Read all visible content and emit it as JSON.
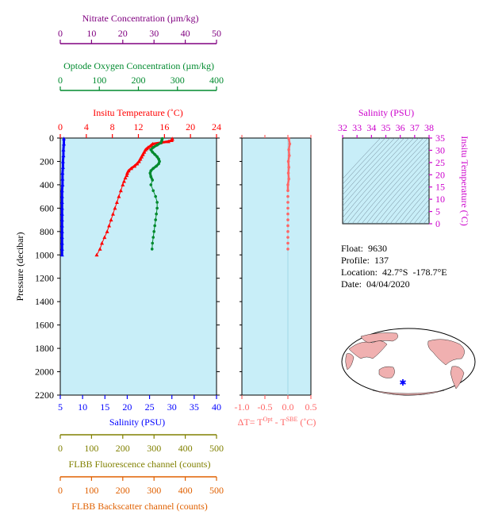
{
  "float_info": {
    "float_label": "Float:",
    "float_value": "9630",
    "profile_label": "Profile:",
    "profile_value": "137",
    "location_label": "Location:",
    "location_value": "42.7°S  -178.7°E",
    "date_label": "Date:",
    "date_value": "04/04/2020"
  },
  "colors": {
    "plot_bg": "#c8eef8",
    "temperature": "#ff0000",
    "salinity": "#0000ff",
    "oxygen": "#008a2e",
    "nitrate": "#800080",
    "dt": "#ff6666",
    "ts": "#cc00cc",
    "flbb_fl": "#808000",
    "flbb_bs": "#e06000",
    "land": "#f0b0b0"
  },
  "chart_data": [
    {
      "type": "line",
      "title": "",
      "ylabel": "Pressure (decibar)",
      "ylim": [
        2200,
        0
      ],
      "yticks": [
        0,
        200,
        400,
        600,
        800,
        1000,
        1200,
        1400,
        1600,
        1800,
        2000,
        2200
      ],
      "axes": {
        "temperature": {
          "label": "Insitu Temperature (˚C)",
          "lim": [
            0,
            24
          ],
          "ticks": [
            0,
            4,
            8,
            12,
            16,
            20,
            24
          ]
        },
        "salinity": {
          "label": "Salinity (PSU)",
          "lim": [
            5,
            40
          ],
          "ticks": [
            5,
            10,
            15,
            20,
            25,
            30,
            35,
            40
          ]
        },
        "oxygen": {
          "label": "Optode Oxygen Concentration (µm/kg)",
          "lim": [
            0,
            400
          ],
          "ticks": [
            0,
            100,
            200,
            300,
            400
          ]
        },
        "nitrate": {
          "label": "Nitrate Concentration (µm/kg)",
          "lim": [
            0,
            50
          ],
          "ticks": [
            0,
            10,
            20,
            30,
            40,
            50
          ]
        },
        "flbb_fl": {
          "label": "FLBB Fluorescence channel (counts)",
          "lim": [
            0,
            500
          ],
          "ticks": [
            0,
            100,
            200,
            300,
            400,
            500
          ]
        },
        "flbb_bs": {
          "label": "FLBB Backscatter channel (counts)",
          "lim": [
            0,
            500
          ],
          "ticks": [
            0,
            100,
            200,
            300,
            400,
            500
          ]
        }
      },
      "series": [
        {
          "key": "temperature",
          "p": [
            5,
            10,
            20,
            30,
            40,
            50,
            60,
            70,
            80,
            90,
            100,
            120,
            140,
            160,
            180,
            200,
            220,
            240,
            260,
            280,
            300,
            320,
            340,
            370,
            400,
            450,
            500,
            550,
            600,
            650,
            700,
            750,
            800,
            850,
            900,
            950,
            1000
          ],
          "v": [
            17.2,
            17.2,
            17.1,
            16.6,
            15.4,
            14.2,
            14.0,
            13.8,
            13.5,
            13.3,
            13.1,
            12.9,
            12.7,
            12.5,
            12.3,
            12.1,
            11.8,
            11.4,
            10.9,
            10.5,
            10.3,
            10.2,
            10.0,
            9.8,
            9.6,
            9.3,
            9.0,
            8.7,
            8.4,
            8.1,
            7.8,
            7.5,
            7.2,
            6.8,
            6.4,
            6.1,
            5.6
          ]
        },
        {
          "key": "salinity",
          "p": [
            5,
            50,
            100,
            150,
            200,
            250,
            300,
            350,
            400,
            450,
            500,
            550,
            600,
            650,
            700,
            750,
            800,
            850,
            900,
            950,
            1000
          ],
          "v": [
            5.8,
            5.8,
            5.7,
            5.7,
            5.6,
            5.6,
            5.5,
            5.5,
            5.5,
            5.4,
            5.4,
            5.4,
            5.4,
            5.4,
            5.4,
            5.4,
            5.4,
            5.4,
            5.4,
            5.4,
            5.4
          ]
        },
        {
          "key": "oxygen",
          "p": [
            5,
            20,
            40,
            60,
            80,
            100,
            120,
            140,
            160,
            180,
            200,
            220,
            240,
            260,
            280,
            300,
            330,
            360,
            400,
            450,
            500,
            550,
            600,
            650,
            700,
            750,
            800,
            850,
            900,
            950
          ],
          "v": [
            261,
            260,
            258,
            248,
            238,
            232,
            236,
            242,
            248,
            252,
            254,
            252,
            246,
            238,
            232,
            230,
            232,
            236,
            232,
            238,
            244,
            248,
            248,
            246,
            244,
            242,
            240,
            238,
            236,
            235
          ]
        },
        {
          "key": "dt",
          "p": [
            5,
            50,
            100,
            150,
            200,
            250,
            300,
            350,
            400,
            450,
            500,
            550,
            600,
            650,
            700,
            750,
            800,
            850,
            900,
            950
          ],
          "v": [
            0.02,
            0.04,
            0.02,
            0.03,
            0.01,
            0.02,
            0.01,
            0.02,
            0.0,
            0.0,
            0.0,
            0.0,
            0.0,
            0.0,
            0.0,
            0.0,
            0.0,
            0.0,
            0.0,
            0.0
          ]
        }
      ],
      "dt_axis": {
        "label": "ΔT= T",
        "sup1": "Opt",
        "mid": " - T",
        "sup2": "SBE",
        "unit": " (˚C)",
        "lim": [
          -1.0,
          0.5
        ],
        "ticks": [
          "-1.0",
          "-0.5",
          "0.0",
          "0.5"
        ]
      }
    },
    {
      "type": "line",
      "title": "",
      "xlabel": "Salinity (PSU)",
      "ylabel": "Insitu Temperature (˚C)",
      "xlim": [
        32,
        38
      ],
      "ylim": [
        0,
        35
      ],
      "xticks": [
        32,
        33,
        34,
        35,
        36,
        37,
        38
      ],
      "yticks": [
        0,
        5,
        10,
        15,
        20,
        25,
        30,
        35
      ],
      "density_contours": true
    }
  ],
  "map": {
    "marker": "float-position"
  }
}
